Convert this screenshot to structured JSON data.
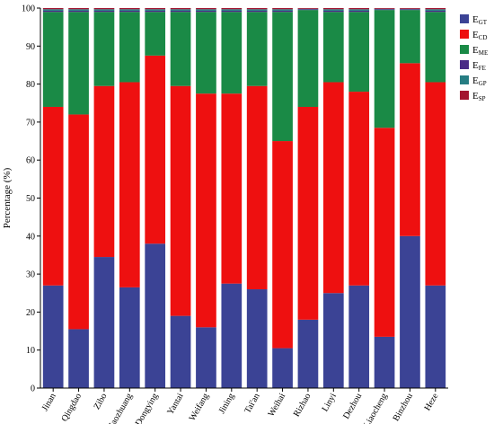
{
  "chart_data": {
    "type": "bar",
    "stacked": true,
    "ylabel": "Percentage (%)",
    "ylim": [
      0,
      100
    ],
    "yticks": [
      0,
      10,
      20,
      30,
      40,
      50,
      60,
      70,
      80,
      90,
      100
    ],
    "categories": [
      "Jinan",
      "Qingdao",
      "Zibo",
      "Zaozhuang",
      "Dongying",
      "Yantai",
      "Weifang",
      "Jining",
      "Tai'an",
      "Weihai",
      "Rizhao",
      "Linyi",
      "Dezhou",
      "Liaocheng",
      "Binzhou",
      "Heze"
    ],
    "legend_position": "top-right",
    "series": [
      {
        "name": "E",
        "sub": "GT",
        "color": "#3b4395",
        "values": [
          27,
          15.5,
          34.5,
          26.5,
          38,
          19,
          16,
          27.5,
          26,
          10.5,
          18,
          25,
          27,
          13.5,
          40,
          27
        ]
      },
      {
        "name": "E",
        "sub": "CD",
        "color": "#ee1010",
        "values": [
          47,
          56.5,
          45,
          54,
          49.5,
          60.5,
          61.5,
          50,
          53.5,
          54.5,
          56,
          55.5,
          51,
          55,
          45.5,
          53.5
        ]
      },
      {
        "name": "E",
        "sub": "ME",
        "color": "#1a8a46",
        "values": [
          25,
          27,
          19.5,
          18.5,
          11.5,
          19.5,
          21.5,
          21.5,
          19.5,
          34,
          25.5,
          18.5,
          21,
          31,
          14,
          18.5
        ]
      },
      {
        "name": "E",
        "sub": "FE",
        "color": "#4a2a86",
        "values": [
          0.3,
          0.3,
          0.3,
          0.3,
          0.3,
          0.3,
          0.3,
          0.3,
          0.3,
          0.3,
          0.2,
          0.3,
          0.3,
          0.2,
          0.2,
          0.3
        ]
      },
      {
        "name": "E",
        "sub": "GP",
        "color": "#267d83",
        "values": [
          0.4,
          0.4,
          0.4,
          0.4,
          0.4,
          0.4,
          0.4,
          0.4,
          0.4,
          0.4,
          0.1,
          0.4,
          0.4,
          0.1,
          0.1,
          0.4
        ]
      },
      {
        "name": "E",
        "sub": "SP",
        "color": "#a31430",
        "values": [
          0.3,
          0.3,
          0.3,
          0.3,
          0.3,
          0.3,
          0.3,
          0.3,
          0.3,
          0.3,
          0.2,
          0.3,
          0.3,
          0.2,
          0.2,
          0.3
        ]
      }
    ]
  }
}
